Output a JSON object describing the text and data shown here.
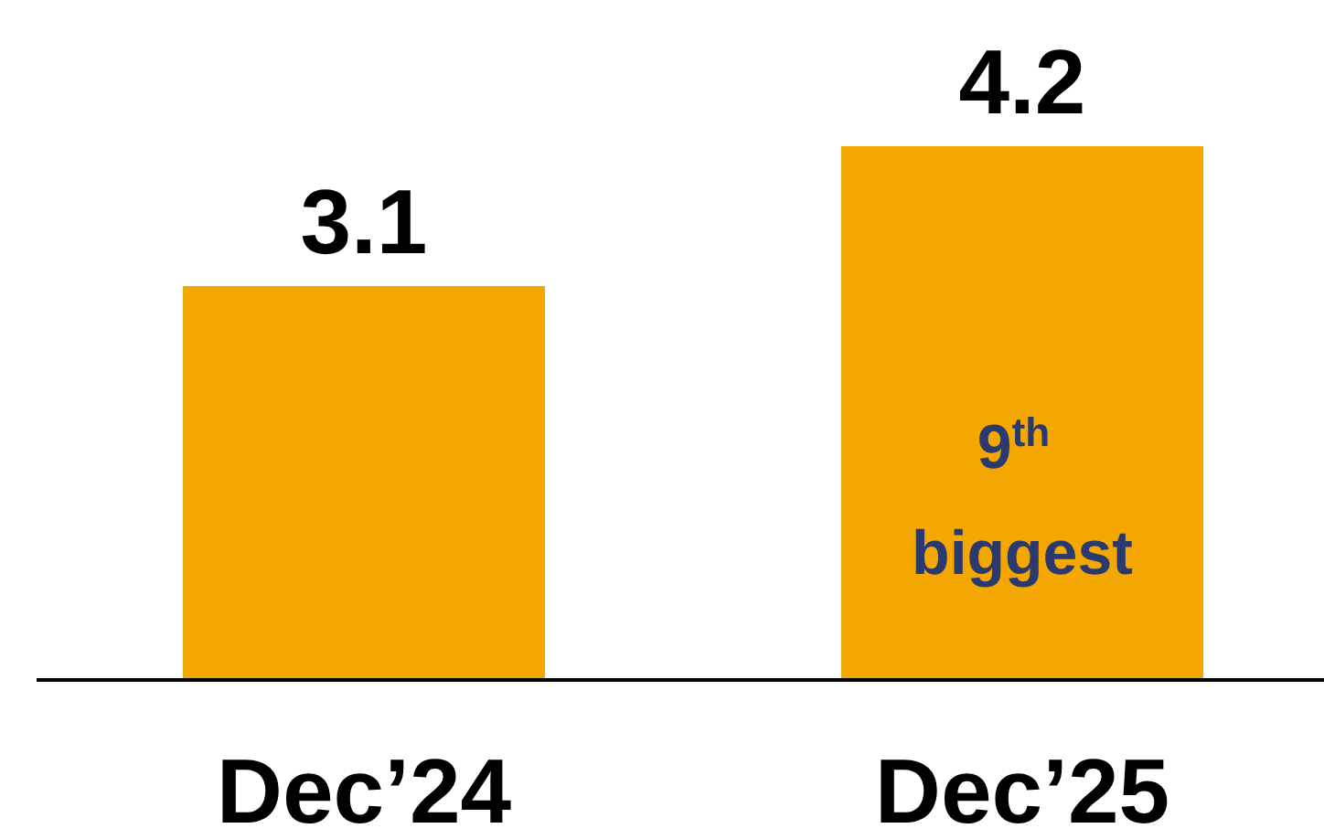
{
  "chart_data": {
    "type": "bar",
    "categories": [
      "Dec’24",
      "Dec’25"
    ],
    "values": [
      3.1,
      4.2
    ],
    "color": "#f4a700",
    "data_labels": true,
    "annotations": [
      "9$^{th}$ biggest"
    ]
  }
}
